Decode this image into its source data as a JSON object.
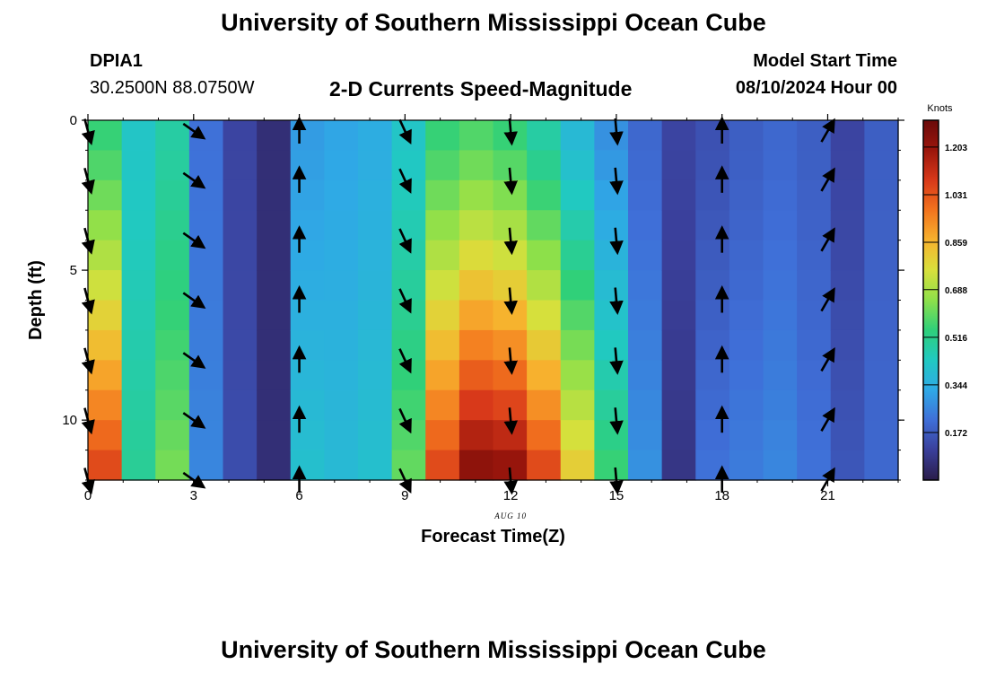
{
  "header": {
    "title": "University of Southern Mississippi Ocean Cube",
    "station_id": "DPIA1",
    "station_coords": "30.2500N  88.0750W",
    "plot_title": "2-D Currents Speed-Magnitude",
    "model_start_label": "Model Start Time",
    "model_start_value": "08/10/2024 Hour 00"
  },
  "footer": {
    "title": "University of Southern Mississippi Ocean Cube"
  },
  "chart_data": {
    "type": "heatmap",
    "title": "2-D Currents Speed-Magnitude",
    "xlabel": "Forecast Time(Z)",
    "ylabel": "Depth (ft)",
    "date_label": "AUG 10",
    "xlim": [
      0,
      23
    ],
    "ylim": [
      0,
      12
    ],
    "y_inverted": true,
    "x_ticks": [
      0,
      3,
      6,
      9,
      12,
      15,
      18,
      21
    ],
    "x_tick_labels": [
      "0",
      "3",
      "6",
      "9",
      "12",
      "15",
      "18",
      "21"
    ],
    "y_ticks": [
      0,
      5,
      10
    ],
    "y_tick_labels": [
      "0",
      "5",
      "10"
    ],
    "depths_ft": [
      0,
      1,
      2,
      3,
      4,
      5,
      6,
      7,
      8,
      9,
      10,
      11
    ],
    "hours": [
      0,
      1,
      2,
      3,
      4,
      5,
      6,
      7,
      8,
      9,
      10,
      11,
      12,
      13,
      14,
      15,
      16,
      17,
      18,
      19,
      20,
      21,
      22,
      23
    ],
    "speed_profile_by_hour_knots": [
      {
        "hour": 0,
        "surface": 0.55,
        "bottom": 1.05
      },
      {
        "hour": 1,
        "surface": 0.42,
        "bottom": 0.5
      },
      {
        "hour": 2,
        "surface": 0.48,
        "bottom": 0.62
      },
      {
        "hour": 3,
        "surface": 0.22,
        "bottom": 0.26
      },
      {
        "hour": 4,
        "surface": 0.12,
        "bottom": 0.14
      },
      {
        "hour": 5,
        "surface": 0.06,
        "bottom": 0.06
      },
      {
        "hour": 6,
        "surface": 0.3,
        "bottom": 0.4
      },
      {
        "hour": 7,
        "surface": 0.32,
        "bottom": 0.38
      },
      {
        "hour": 8,
        "surface": 0.34,
        "bottom": 0.4
      },
      {
        "hour": 9,
        "surface": 0.42,
        "bottom": 0.6
      },
      {
        "hour": 10,
        "surface": 0.55,
        "bottom": 1.05
      },
      {
        "hour": 11,
        "surface": 0.58,
        "bottom": 1.22
      },
      {
        "hour": 12,
        "surface": 0.55,
        "bottom": 1.2
      },
      {
        "hour": 13,
        "surface": 0.48,
        "bottom": 1.05
      },
      {
        "hour": 14,
        "surface": 0.38,
        "bottom": 0.8
      },
      {
        "hour": 15,
        "surface": 0.28,
        "bottom": 0.55
      },
      {
        "hour": 16,
        "surface": 0.2,
        "bottom": 0.28
      },
      {
        "hour": 17,
        "surface": 0.12,
        "bottom": 0.08
      },
      {
        "hour": 18,
        "surface": 0.15,
        "bottom": 0.22
      },
      {
        "hour": 19,
        "surface": 0.18,
        "bottom": 0.24
      },
      {
        "hour": 20,
        "surface": 0.2,
        "bottom": 0.26
      },
      {
        "hour": 21,
        "surface": 0.18,
        "bottom": 0.22
      },
      {
        "hour": 22,
        "surface": 0.12,
        "bottom": 0.16
      },
      {
        "hour": 23,
        "surface": 0.18,
        "bottom": 0.2
      }
    ],
    "vector_hours": [
      0,
      3,
      6,
      9,
      12,
      15,
      18,
      21
    ],
    "vector_depths_ft": [
      0,
      2,
      4,
      6,
      8,
      10,
      12
    ],
    "vector_direction_deg": [
      {
        "hour": 0,
        "dir": 165
      },
      {
        "hour": 3,
        "dir": 125
      },
      {
        "hour": 6,
        "dir": 0
      },
      {
        "hour": 9,
        "dir": 155
      },
      {
        "hour": 12,
        "dir": 175
      },
      {
        "hour": 15,
        "dir": 175
      },
      {
        "hour": 18,
        "dir": 0
      },
      {
        "hour": 21,
        "dir": 30
      }
    ],
    "colorbar": {
      "title": "Knots",
      "min": 0.0,
      "max": 1.3,
      "ticks": [
        0.172,
        0.344,
        0.516,
        0.688,
        0.859,
        1.031,
        1.203
      ],
      "tick_labels": [
        "0.172",
        "0.344",
        "0.516",
        "0.688",
        "0.859",
        "1.031",
        "1.203"
      ],
      "colormap": [
        "#2a1c4a",
        "#3a3f9a",
        "#3f6fd8",
        "#2fa9e6",
        "#21c9c2",
        "#2fd07a",
        "#8ee04a",
        "#d8e03c",
        "#f7b22e",
        "#f3741e",
        "#d8391a",
        "#9b160c",
        "#6a0a0a"
      ]
    }
  }
}
